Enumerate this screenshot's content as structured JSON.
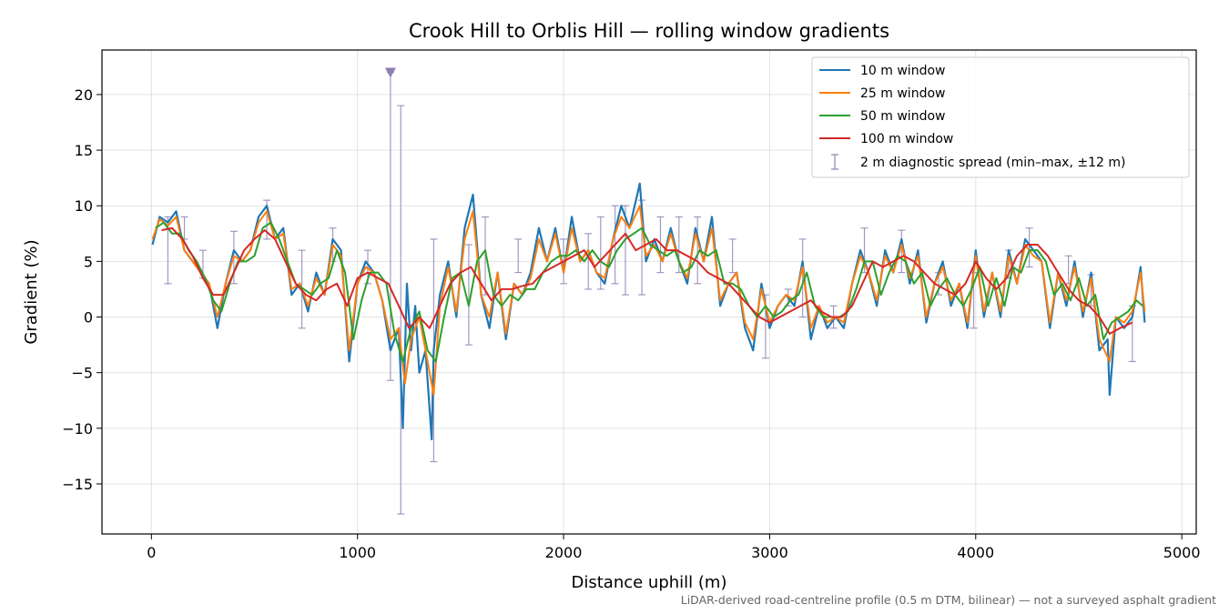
{
  "chart_data": {
    "type": "line",
    "title": "Crook Hill to Orblis Hill — rolling window gradients",
    "xlabel": "Distance uphill (m)",
    "ylabel": "Gradient (%)",
    "footnote": "LiDAR-derived road-centreline profile (0.5 m DTM, bilinear) — not a surveyed asphalt gradient",
    "xlim": [
      -240,
      5070
    ],
    "ylim": [
      -19.5,
      24
    ],
    "x_ticks": [
      0,
      1000,
      2000,
      3000,
      4000,
      5000
    ],
    "y_ticks": [
      -15,
      -10,
      -5,
      0,
      5,
      10,
      15,
      20
    ],
    "grid": true,
    "legend_position": "top-right",
    "series": [
      {
        "name": "10 m window",
        "color": "#1f77b4",
        "x": [
          5,
          40,
          80,
          120,
          160,
          200,
          240,
          280,
          320,
          360,
          400,
          440,
          480,
          520,
          560,
          600,
          640,
          680,
          720,
          760,
          800,
          840,
          880,
          920,
          960,
          1000,
          1040,
          1080,
          1120,
          1160,
          1200,
          1220,
          1240,
          1260,
          1280,
          1300,
          1330,
          1360,
          1370,
          1400,
          1440,
          1480,
          1520,
          1560,
          1600,
          1640,
          1680,
          1720,
          1760,
          1800,
          1840,
          1880,
          1920,
          1960,
          2000,
          2040,
          2080,
          2120,
          2160,
          2200,
          2240,
          2280,
          2320,
          2370,
          2400,
          2440,
          2480,
          2520,
          2560,
          2600,
          2640,
          2680,
          2720,
          2760,
          2800,
          2840,
          2880,
          2920,
          2960,
          3000,
          3040,
          3080,
          3120,
          3160,
          3200,
          3240,
          3280,
          3320,
          3360,
          3400,
          3440,
          3480,
          3520,
          3560,
          3600,
          3640,
          3680,
          3720,
          3760,
          3800,
          3840,
          3880,
          3920,
          3960,
          4000,
          4040,
          4080,
          4120,
          4160,
          4200,
          4240,
          4280,
          4320,
          4360,
          4400,
          4440,
          4480,
          4520,
          4560,
          4600,
          4640,
          4650,
          4680,
          4720,
          4760,
          4800,
          4820
        ],
        "y": [
          6.5,
          9,
          8.5,
          9.5,
          6,
          5,
          4,
          3,
          -1,
          3,
          6,
          5,
          6,
          9,
          10,
          7,
          8,
          2,
          3,
          0.5,
          4,
          2,
          7,
          6,
          -4,
          3,
          5,
          4,
          1.5,
          -3,
          -1,
          -10,
          3,
          -3,
          1,
          -5,
          -3,
          -11,
          -3,
          2,
          5,
          0,
          8,
          11,
          2,
          -1,
          4,
          -2,
          3,
          2,
          4,
          8,
          5,
          8,
          4,
          9,
          5,
          6,
          4,
          3,
          7,
          10,
          8,
          12,
          5,
          7,
          5,
          8,
          5,
          3,
          8,
          5,
          9,
          1,
          3,
          4,
          -1,
          -3,
          3,
          -1,
          1,
          2,
          1,
          5,
          -2,
          1,
          -1,
          0,
          -1,
          3,
          6,
          4,
          1,
          6,
          4,
          7,
          3,
          6,
          -0.5,
          3,
          5,
          1,
          3,
          -1,
          6,
          0,
          4,
          0,
          6,
          3,
          7,
          6,
          5,
          -1,
          4,
          1,
          5,
          0,
          4,
          -3,
          -2,
          -7,
          0,
          -1,
          0,
          4.5,
          -0.5
        ]
      },
      {
        "name": "25 m window",
        "color": "#ff7f0e",
        "x": [
          5,
          40,
          80,
          120,
          160,
          200,
          240,
          280,
          320,
          360,
          400,
          440,
          480,
          520,
          560,
          600,
          640,
          680,
          720,
          760,
          800,
          840,
          880,
          920,
          960,
          1000,
          1040,
          1080,
          1120,
          1160,
          1200,
          1230,
          1260,
          1300,
          1340,
          1370,
          1400,
          1440,
          1480,
          1520,
          1560,
          1600,
          1640,
          1680,
          1720,
          1760,
          1800,
          1840,
          1880,
          1920,
          1960,
          2000,
          2040,
          2080,
          2120,
          2160,
          2200,
          2240,
          2280,
          2320,
          2370,
          2400,
          2440,
          2480,
          2520,
          2560,
          2600,
          2640,
          2680,
          2720,
          2760,
          2800,
          2840,
          2880,
          2920,
          2960,
          3000,
          3040,
          3080,
          3120,
          3160,
          3200,
          3240,
          3280,
          3320,
          3360,
          3400,
          3440,
          3480,
          3520,
          3560,
          3600,
          3640,
          3680,
          3720,
          3760,
          3800,
          3840,
          3880,
          3920,
          3960,
          4000,
          4040,
          4080,
          4120,
          4160,
          4200,
          4240,
          4280,
          4320,
          4360,
          4400,
          4440,
          4480,
          4520,
          4560,
          4600,
          4650,
          4680,
          4720,
          4760,
          4800,
          4820
        ],
        "y": [
          7,
          8.8,
          8.2,
          9,
          6,
          5,
          4,
          3,
          0,
          3,
          5.5,
          5,
          6,
          8.5,
          9.5,
          7,
          7.5,
          2.5,
          3,
          1,
          3.5,
          2,
          6.5,
          5.5,
          -3,
          3,
          4.5,
          4,
          1.5,
          -2,
          -1,
          -6,
          -2,
          0,
          -4,
          -7,
          1,
          4.5,
          0.5,
          7,
          9.5,
          2,
          0,
          4,
          -1.5,
          3,
          2,
          3.5,
          7,
          5,
          7.5,
          4,
          8,
          5,
          6,
          4,
          3.5,
          7,
          9,
          8,
          10,
          5.5,
          6.5,
          5,
          7.5,
          5,
          3.5,
          7.5,
          5,
          8,
          1.5,
          3,
          4,
          -0.5,
          -2,
          2.5,
          -0.5,
          1,
          2,
          1.5,
          4.5,
          -1,
          1,
          -0.5,
          0,
          -0.5,
          3,
          5.5,
          4,
          1.5,
          5.5,
          4,
          6.5,
          3.5,
          5.5,
          0,
          3,
          4.5,
          1.5,
          3,
          -0.5,
          5.5,
          0.5,
          4,
          0.5,
          5.5,
          3,
          6.5,
          5.5,
          5,
          -0.5,
          4,
          1.5,
          4.5,
          0.5,
          3.5,
          -2,
          -4,
          0,
          -0.5,
          0.5,
          4,
          0.5
        ]
      },
      {
        "name": "50 m window",
        "color": "#2ca02c",
        "x": [
          20,
          60,
          100,
          140,
          180,
          220,
          260,
          300,
          340,
          380,
          420,
          460,
          500,
          540,
          580,
          620,
          660,
          700,
          740,
          780,
          820,
          860,
          900,
          940,
          980,
          1020,
          1060,
          1100,
          1140,
          1180,
          1220,
          1260,
          1300,
          1340,
          1380,
          1420,
          1460,
          1500,
          1540,
          1580,
          1620,
          1660,
          1700,
          1740,
          1780,
          1820,
          1860,
          1900,
          1940,
          1980,
          2020,
          2060,
          2100,
          2140,
          2180,
          2220,
          2260,
          2300,
          2340,
          2380,
          2420,
          2460,
          2500,
          2540,
          2580,
          2620,
          2660,
          2700,
          2740,
          2780,
          2820,
          2860,
          2900,
          2940,
          2980,
          3020,
          3060,
          3100,
          3140,
          3180,
          3220,
          3260,
          3300,
          3340,
          3380,
          3420,
          3460,
          3500,
          3540,
          3580,
          3620,
          3660,
          3700,
          3740,
          3780,
          3820,
          3860,
          3900,
          3940,
          3980,
          4020,
          4060,
          4100,
          4140,
          4180,
          4220,
          4260,
          4300,
          4340,
          4380,
          4420,
          4460,
          4500,
          4540,
          4580,
          4620,
          4660,
          4700,
          4740,
          4780,
          4810
        ],
        "y": [
          8,
          8.5,
          7.5,
          7.5,
          6,
          5,
          3.5,
          1.5,
          0.5,
          3,
          5,
          5,
          5.5,
          8,
          8.5,
          7,
          5,
          3,
          2.5,
          2,
          3,
          3.5,
          6,
          4,
          -2,
          1.5,
          4,
          4,
          3,
          -1.5,
          -4,
          -1,
          0.5,
          -3,
          -4,
          0,
          3.5,
          4,
          1,
          5,
          6,
          2,
          1,
          2,
          1.5,
          2.5,
          2.5,
          4,
          5,
          5.5,
          5.5,
          6,
          5,
          6,
          5,
          4.5,
          6,
          7,
          7.5,
          8,
          6.5,
          6,
          5.5,
          6,
          4,
          4.5,
          6,
          5.5,
          6,
          3,
          3,
          2.5,
          1,
          0,
          1,
          0,
          0.5,
          1.5,
          2,
          4,
          1,
          0,
          0,
          0,
          0.5,
          2.5,
          5,
          5,
          2,
          4,
          5.5,
          5,
          3,
          4,
          1,
          2.5,
          3.5,
          2,
          1,
          2.5,
          4.5,
          1,
          3.5,
          1,
          4.5,
          4,
          6,
          6,
          5,
          2,
          3,
          1.5,
          3.5,
          1,
          2,
          -2,
          -0.5,
          0,
          0.5,
          1.5,
          1
        ]
      },
      {
        "name": "100 m window",
        "color": "#d62728",
        "x": [
          50,
          100,
          150,
          200,
          250,
          300,
          350,
          400,
          450,
          500,
          550,
          600,
          650,
          700,
          750,
          800,
          850,
          900,
          950,
          1000,
          1050,
          1100,
          1150,
          1200,
          1250,
          1300,
          1350,
          1400,
          1450,
          1500,
          1550,
          1600,
          1650,
          1700,
          1750,
          1800,
          1850,
          1900,
          1950,
          2000,
          2050,
          2100,
          2150,
          2200,
          2250,
          2300,
          2350,
          2400,
          2450,
          2500,
          2550,
          2600,
          2650,
          2700,
          2750,
          2800,
          2850,
          2900,
          2950,
          3000,
          3050,
          3100,
          3150,
          3200,
          3250,
          3300,
          3350,
          3400,
          3450,
          3500,
          3550,
          3600,
          3650,
          3700,
          3750,
          3800,
          3850,
          3900,
          3950,
          4000,
          4050,
          4100,
          4150,
          4200,
          4250,
          4300,
          4350,
          4400,
          4450,
          4500,
          4550,
          4600,
          4650,
          4700,
          4760
        ],
        "y": [
          7.8,
          8,
          7,
          5.5,
          3.5,
          2,
          2,
          4,
          6,
          7,
          7.8,
          7,
          5,
          3,
          2,
          1.5,
          2.5,
          3,
          1,
          3.5,
          4,
          3.5,
          3,
          1,
          -1,
          0,
          -1,
          1,
          3,
          4,
          4.5,
          3,
          1.5,
          2.5,
          2.5,
          2.8,
          3,
          4,
          4.5,
          5,
          5.5,
          6,
          4.5,
          5.5,
          6.5,
          7.5,
          6,
          6.5,
          7,
          6,
          6,
          5.5,
          5,
          4,
          3.5,
          3,
          2,
          1,
          0,
          -0.5,
          0,
          0.5,
          1,
          1.5,
          0.5,
          0,
          0,
          1,
          3,
          5,
          4.5,
          5,
          5.5,
          5,
          4,
          3,
          2.5,
          2,
          3,
          5,
          3.5,
          2.5,
          3.5,
          5.5,
          6.5,
          6.5,
          5.5,
          4,
          2.5,
          1.5,
          1,
          0,
          -1.5,
          -1,
          -0.5
        ]
      }
    ],
    "diagnostic_spread": {
      "name": "2 m diagnostic spread (min–max, ±12 m)",
      "color": "#8e7fb0",
      "x": [
        80,
        160,
        250,
        400,
        560,
        730,
        880,
        1050,
        1160,
        1210,
        1370,
        1540,
        1620,
        1780,
        2000,
        2120,
        2180,
        2250,
        2300,
        2380,
        2470,
        2560,
        2650,
        2820,
        2980,
        3090,
        3160,
        3310,
        3460,
        3640,
        3820,
        3990,
        4160,
        4260,
        4450,
        4560,
        4760
      ],
      "low": [
        3,
        7,
        3.5,
        3,
        7,
        -1,
        5,
        3,
        -5.7,
        -17.7,
        -13,
        -2.5,
        2,
        4,
        3,
        2.5,
        2.5,
        3,
        2,
        2,
        4,
        4,
        3,
        4,
        -3.7,
        1,
        0,
        -1,
        4,
        4,
        2,
        -1,
        3.5,
        4.5,
        3,
        1,
        -4
      ],
      "high": [
        9,
        9,
        6,
        7.7,
        10.5,
        6,
        8,
        6,
        22,
        19,
        7,
        6.5,
        9,
        7,
        7,
        7.5,
        9,
        10,
        10,
        10.5,
        9,
        9,
        9,
        7,
        2,
        2.5,
        7,
        1,
        8,
        7.8,
        4,
        4,
        6,
        8,
        5.5,
        3.8,
        1
      ],
      "off_scale_marker": {
        "x": 1160,
        "y": 22
      }
    }
  }
}
